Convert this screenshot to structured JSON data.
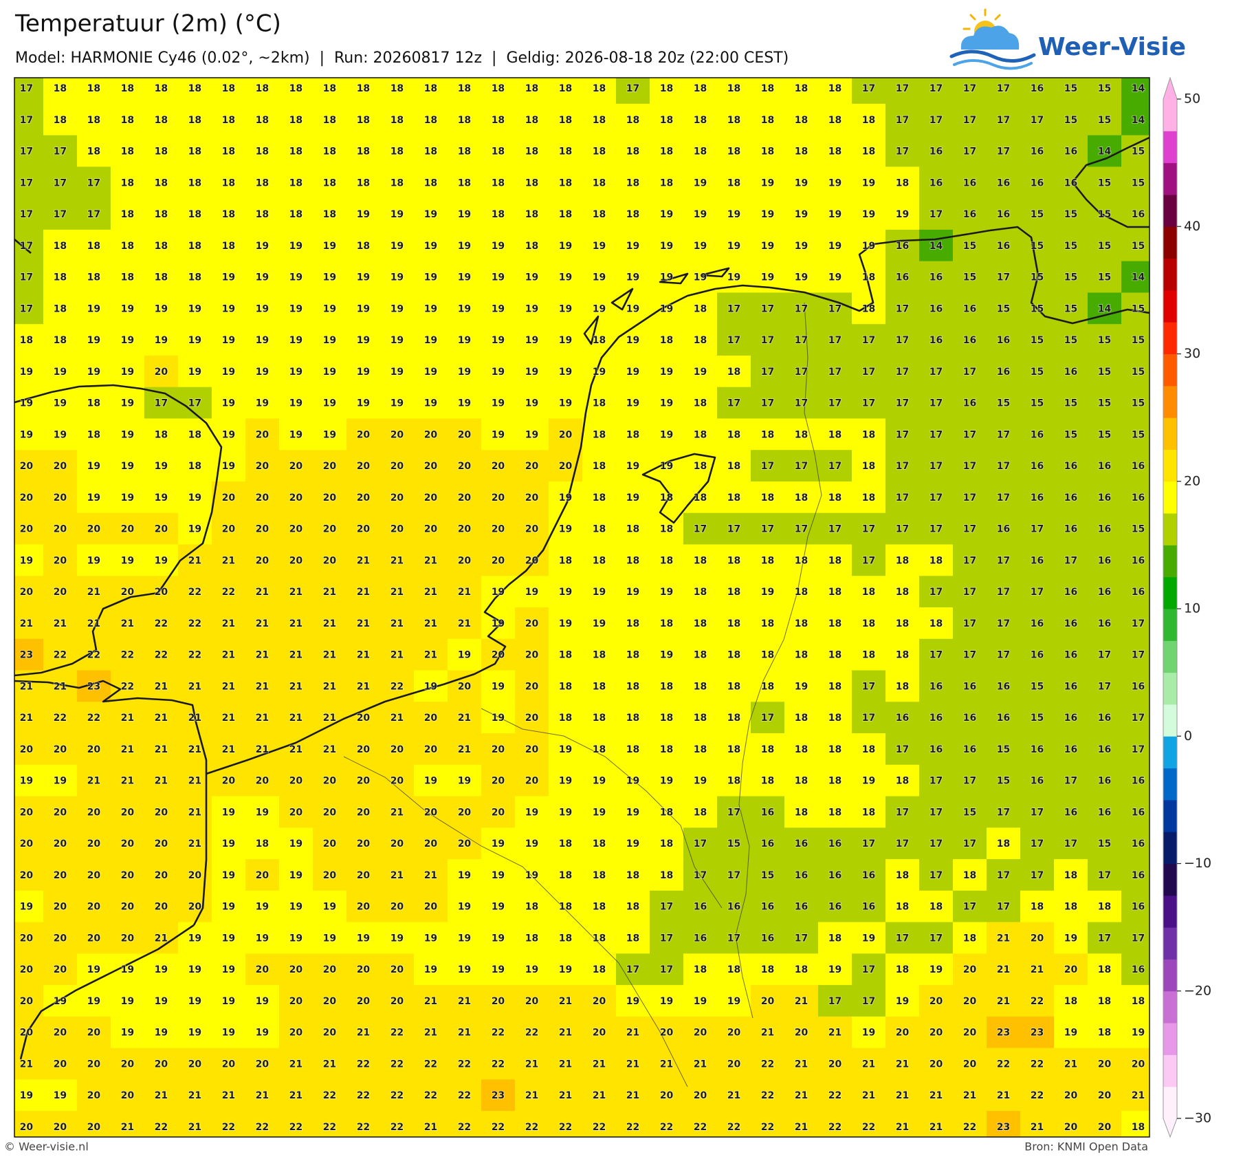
{
  "header": {
    "title": "Temperatuur (2m) (°C)",
    "subtitle": "Model: HARMONIE Cy46 (0.02°, ~2km)  |  Run: 20260817 12z  |  Geldig: 2026-08-18 20z (22:00 CEST)"
  },
  "logo": "Weer-Visie",
  "footer": {
    "left": "© Weer-visie.nl",
    "right": "Bron: KNMI Open Data"
  },
  "colorbar": {
    "lim": [
      -30,
      50
    ],
    "ticks": [
      {
        "value": -30,
        "label": "−30"
      },
      {
        "value": -20,
        "label": "−20"
      },
      {
        "value": -10,
        "label": "−10"
      },
      0,
      10,
      20,
      30,
      40,
      50
    ],
    "colors": [
      "#fff0fc",
      "#fcc8f4",
      "#e898e8",
      "#c870d4",
      "#9c48bc",
      "#7030a8",
      "#4a1088",
      "#22084e",
      "#081a6a",
      "#0038a0",
      "#0068c8",
      "#10a4e4",
      "#d4fcdc",
      "#a8eca8",
      "#70d470",
      "#30b830",
      "#00a800",
      "#48ac00",
      "#b0d000",
      "#ffff00",
      "#ffe400",
      "#ffc000",
      "#ff8c00",
      "#ff5a00",
      "#ff2800",
      "#e00000",
      "#b80000",
      "#8c0000",
      "#6a0040",
      "#a01080",
      "#e040d0",
      "#ffb0e4"
    ]
  },
  "grid": {
    "rows": [
      [
        17,
        18,
        18,
        18,
        18,
        18,
        18,
        18,
        18,
        18,
        18,
        18,
        18,
        18,
        18,
        18,
        18,
        18,
        17,
        18,
        18,
        18,
        18,
        18,
        18,
        17,
        17,
        17,
        17,
        17,
        16,
        15,
        15,
        14
      ],
      [
        17,
        18,
        18,
        18,
        18,
        18,
        18,
        18,
        18,
        18,
        18,
        18,
        18,
        18,
        18,
        18,
        18,
        18,
        18,
        18,
        18,
        18,
        18,
        18,
        18,
        18,
        17,
        17,
        17,
        17,
        17,
        15,
        15,
        14
      ],
      [
        17,
        17,
        18,
        18,
        18,
        18,
        18,
        18,
        18,
        18,
        18,
        18,
        18,
        18,
        18,
        18,
        18,
        18,
        18,
        18,
        18,
        18,
        18,
        18,
        18,
        18,
        17,
        16,
        17,
        17,
        16,
        16,
        14,
        15
      ],
      [
        17,
        17,
        17,
        18,
        18,
        18,
        18,
        18,
        18,
        18,
        18,
        18,
        18,
        18,
        18,
        18,
        18,
        18,
        18,
        18,
        19,
        18,
        19,
        19,
        19,
        19,
        18,
        16,
        16,
        16,
        16,
        16,
        15,
        15
      ],
      [
        17,
        17,
        17,
        18,
        18,
        18,
        18,
        18,
        18,
        18,
        19,
        19,
        19,
        19,
        18,
        18,
        18,
        18,
        18,
        19,
        19,
        19,
        19,
        19,
        19,
        19,
        19,
        17,
        16,
        16,
        15,
        15,
        15,
        16
      ],
      [
        17,
        18,
        18,
        18,
        18,
        18,
        18,
        19,
        19,
        19,
        18,
        19,
        19,
        19,
        19,
        18,
        19,
        19,
        19,
        19,
        19,
        19,
        19,
        19,
        19,
        19,
        16,
        14,
        15,
        16,
        15,
        15,
        15,
        15
      ],
      [
        17,
        18,
        18,
        18,
        18,
        18,
        19,
        19,
        19,
        19,
        19,
        19,
        19,
        19,
        19,
        19,
        19,
        19,
        19,
        19,
        19,
        19,
        19,
        19,
        19,
        18,
        16,
        16,
        15,
        17,
        15,
        15,
        15,
        14
      ],
      [
        17,
        18,
        19,
        19,
        19,
        19,
        19,
        19,
        19,
        19,
        19,
        19,
        19,
        19,
        19,
        19,
        19,
        19,
        19,
        19,
        18,
        17,
        17,
        17,
        17,
        18,
        17,
        16,
        16,
        15,
        15,
        15,
        14,
        15
      ],
      [
        18,
        18,
        19,
        19,
        19,
        19,
        19,
        19,
        19,
        19,
        19,
        19,
        19,
        19,
        19,
        19,
        19,
        18,
        19,
        18,
        18,
        17,
        17,
        17,
        17,
        17,
        17,
        16,
        16,
        16,
        15,
        15,
        15,
        15
      ],
      [
        19,
        19,
        19,
        19,
        20,
        19,
        19,
        19,
        19,
        19,
        19,
        19,
        19,
        19,
        19,
        19,
        19,
        19,
        19,
        19,
        19,
        18,
        17,
        17,
        17,
        17,
        17,
        17,
        17,
        16,
        15,
        16,
        15,
        15
      ],
      [
        19,
        19,
        18,
        19,
        17,
        17,
        19,
        19,
        19,
        19,
        19,
        19,
        19,
        19,
        19,
        19,
        19,
        18,
        19,
        19,
        18,
        17,
        17,
        17,
        17,
        17,
        17,
        17,
        16,
        15,
        15,
        15,
        15,
        15
      ],
      [
        19,
        19,
        18,
        19,
        18,
        18,
        19,
        20,
        19,
        19,
        20,
        20,
        20,
        20,
        19,
        19,
        20,
        18,
        18,
        19,
        18,
        18,
        18,
        18,
        18,
        18,
        17,
        17,
        17,
        17,
        16,
        15,
        15,
        15
      ],
      [
        20,
        20,
        19,
        19,
        19,
        18,
        19,
        20,
        20,
        20,
        20,
        20,
        20,
        20,
        20,
        20,
        20,
        18,
        19,
        19,
        18,
        18,
        17,
        17,
        17,
        18,
        17,
        17,
        17,
        17,
        16,
        16,
        16,
        16
      ],
      [
        20,
        20,
        19,
        19,
        19,
        19,
        20,
        20,
        20,
        20,
        20,
        20,
        20,
        20,
        20,
        20,
        19,
        18,
        19,
        18,
        18,
        18,
        18,
        18,
        18,
        18,
        17,
        17,
        17,
        17,
        16,
        16,
        16,
        16
      ],
      [
        20,
        20,
        20,
        20,
        20,
        19,
        20,
        20,
        20,
        20,
        20,
        20,
        20,
        20,
        20,
        20,
        19,
        18,
        18,
        18,
        17,
        17,
        17,
        17,
        17,
        17,
        17,
        17,
        17,
        16,
        17,
        16,
        16,
        15
      ],
      [
        19,
        20,
        19,
        19,
        19,
        21,
        21,
        20,
        20,
        20,
        21,
        21,
        21,
        20,
        20,
        20,
        18,
        18,
        18,
        18,
        18,
        18,
        18,
        18,
        18,
        17,
        18,
        18,
        17,
        17,
        16,
        17,
        16,
        16
      ],
      [
        20,
        20,
        21,
        20,
        20,
        22,
        22,
        21,
        21,
        21,
        21,
        21,
        21,
        21,
        19,
        19,
        19,
        19,
        19,
        19,
        18,
        18,
        19,
        18,
        18,
        18,
        18,
        17,
        17,
        17,
        17,
        16,
        16,
        16
      ],
      [
        21,
        21,
        21,
        21,
        22,
        22,
        21,
        21,
        21,
        21,
        21,
        21,
        21,
        21,
        19,
        20,
        19,
        19,
        18,
        18,
        18,
        18,
        18,
        18,
        18,
        18,
        18,
        18,
        17,
        17,
        16,
        16,
        16,
        17
      ],
      [
        23,
        22,
        22,
        22,
        22,
        22,
        21,
        21,
        21,
        21,
        21,
        21,
        21,
        19,
        20,
        20,
        18,
        18,
        18,
        19,
        18,
        18,
        18,
        18,
        18,
        18,
        18,
        17,
        17,
        17,
        16,
        16,
        17,
        17
      ],
      [
        21,
        21,
        23,
        22,
        21,
        21,
        21,
        21,
        21,
        21,
        21,
        22,
        19,
        20,
        19,
        20,
        18,
        18,
        18,
        18,
        18,
        18,
        18,
        19,
        18,
        17,
        18,
        16,
        16,
        16,
        15,
        16,
        17,
        16
      ],
      [
        21,
        22,
        22,
        21,
        21,
        21,
        21,
        21,
        21,
        21,
        20,
        21,
        20,
        21,
        19,
        20,
        18,
        18,
        18,
        18,
        18,
        18,
        17,
        18,
        18,
        17,
        16,
        16,
        16,
        16,
        15,
        16,
        16,
        17
      ],
      [
        20,
        20,
        20,
        21,
        21,
        21,
        21,
        21,
        21,
        21,
        20,
        20,
        20,
        21,
        20,
        20,
        19,
        18,
        18,
        18,
        18,
        18,
        18,
        18,
        18,
        18,
        17,
        16,
        16,
        15,
        16,
        16,
        16,
        17
      ],
      [
        19,
        19,
        21,
        21,
        21,
        21,
        20,
        20,
        20,
        20,
        20,
        20,
        19,
        19,
        20,
        20,
        19,
        19,
        19,
        19,
        19,
        18,
        18,
        18,
        18,
        19,
        18,
        17,
        17,
        15,
        16,
        17,
        16,
        16
      ],
      [
        20,
        20,
        20,
        20,
        20,
        21,
        19,
        19,
        20,
        20,
        20,
        21,
        20,
        20,
        20,
        19,
        19,
        19,
        19,
        18,
        18,
        17,
        16,
        18,
        18,
        18,
        17,
        17,
        15,
        17,
        17,
        16,
        16,
        16
      ],
      [
        20,
        20,
        20,
        20,
        20,
        21,
        19,
        18,
        19,
        20,
        20,
        20,
        20,
        20,
        19,
        19,
        18,
        18,
        19,
        18,
        17,
        15,
        16,
        16,
        16,
        17,
        17,
        17,
        17,
        18,
        17,
        17,
        15,
        16
      ],
      [
        20,
        20,
        20,
        20,
        20,
        20,
        19,
        20,
        19,
        20,
        20,
        21,
        21,
        19,
        19,
        19,
        18,
        18,
        18,
        18,
        17,
        17,
        15,
        16,
        16,
        16,
        18,
        17,
        18,
        17,
        17,
        18,
        17,
        16
      ],
      [
        19,
        20,
        20,
        20,
        20,
        20,
        19,
        19,
        19,
        19,
        20,
        20,
        20,
        19,
        19,
        18,
        18,
        18,
        18,
        17,
        16,
        16,
        16,
        16,
        16,
        16,
        18,
        18,
        17,
        17,
        18,
        18,
        18,
        16
      ],
      [
        20,
        20,
        20,
        20,
        21,
        19,
        19,
        19,
        19,
        19,
        19,
        19,
        19,
        19,
        19,
        18,
        18,
        18,
        18,
        17,
        16,
        17,
        16,
        17,
        18,
        19,
        17,
        17,
        18,
        21,
        20,
        19,
        17,
        17
      ],
      [
        20,
        20,
        19,
        19,
        19,
        19,
        19,
        20,
        20,
        20,
        20,
        20,
        19,
        19,
        19,
        19,
        19,
        18,
        17,
        17,
        18,
        18,
        18,
        18,
        19,
        17,
        18,
        19,
        20,
        21,
        21,
        20,
        18,
        16
      ],
      [
        20,
        19,
        19,
        19,
        19,
        19,
        19,
        19,
        20,
        20,
        20,
        20,
        21,
        21,
        20,
        20,
        21,
        20,
        19,
        19,
        19,
        19,
        20,
        21,
        17,
        17,
        19,
        20,
        20,
        21,
        22,
        18,
        18,
        18
      ],
      [
        20,
        20,
        20,
        19,
        19,
        19,
        19,
        19,
        20,
        20,
        21,
        22,
        21,
        21,
        22,
        22,
        21,
        20,
        21,
        20,
        20,
        20,
        21,
        20,
        21,
        19,
        20,
        20,
        20,
        23,
        23,
        19,
        18,
        19
      ],
      [
        21,
        20,
        20,
        20,
        20,
        20,
        20,
        20,
        21,
        21,
        22,
        22,
        22,
        22,
        22,
        21,
        21,
        21,
        21,
        21,
        21,
        20,
        22,
        21,
        20,
        21,
        21,
        20,
        20,
        22,
        22,
        21,
        20,
        20
      ],
      [
        19,
        19,
        20,
        20,
        21,
        21,
        21,
        21,
        21,
        22,
        22,
        22,
        22,
        22,
        23,
        21,
        21,
        21,
        21,
        20,
        20,
        21,
        22,
        21,
        22,
        21,
        21,
        21,
        21,
        21,
        22,
        20,
        20,
        21
      ],
      [
        20,
        20,
        20,
        21,
        22,
        21,
        22,
        22,
        22,
        22,
        22,
        22,
        21,
        22,
        22,
        22,
        22,
        22,
        22,
        22,
        22,
        22,
        22,
        21,
        22,
        22,
        21,
        21,
        22,
        23,
        21,
        20,
        20,
        18
      ]
    ]
  }
}
